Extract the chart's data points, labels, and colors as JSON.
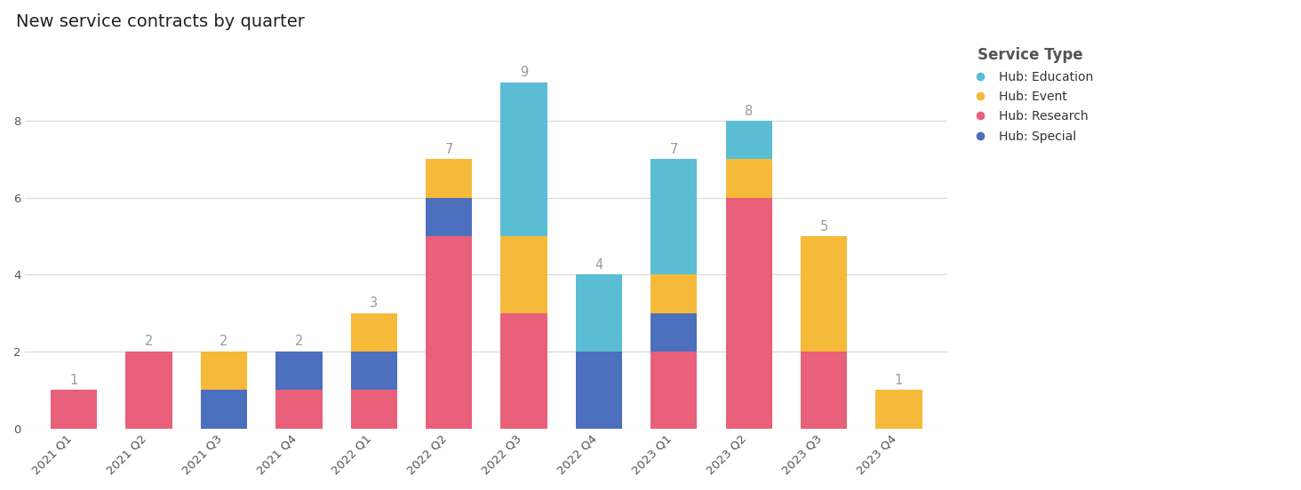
{
  "title": "New service contracts by quarter",
  "quarters": [
    "2021 Q1",
    "2021 Q2",
    "2021 Q3",
    "2021 Q4",
    "2022 Q1",
    "2022 Q2",
    "2022 Q3",
    "2022 Q4",
    "2023 Q1",
    "2023 Q2",
    "2023 Q3",
    "2023 Q4"
  ],
  "series": {
    "Hub: Research": [
      1,
      2,
      0,
      1,
      1,
      5,
      3,
      0,
      2,
      6,
      2,
      0
    ],
    "Hub: Special": [
      0,
      0,
      1,
      1,
      1,
      1,
      0,
      2,
      1,
      0,
      0,
      0
    ],
    "Hub: Event": [
      0,
      0,
      1,
      0,
      1,
      1,
      2,
      0,
      1,
      1,
      3,
      1
    ],
    "Hub: Education": [
      0,
      0,
      0,
      0,
      0,
      0,
      4,
      2,
      3,
      1,
      0,
      0
    ]
  },
  "totals": [
    1,
    2,
    2,
    2,
    3,
    7,
    9,
    4,
    7,
    8,
    5,
    1
  ],
  "colors": {
    "Hub: Research": "#e8607a",
    "Hub: Special": "#4c6fbe",
    "Hub: Event": "#f5ba3a",
    "Hub: Education": "#5bbdd4"
  },
  "legend_title": "Service Type",
  "legend_order": [
    "Hub: Education",
    "Hub: Event",
    "Hub: Research",
    "Hub: Special"
  ],
  "stack_order": [
    "Hub: Research",
    "Hub: Special",
    "Hub: Event",
    "Hub: Education"
  ],
  "ylim": [
    0,
    10
  ],
  "yticks": [
    0,
    2,
    4,
    6,
    8
  ],
  "background_color": "#ffffff",
  "grid_color": "#d8d8d8",
  "title_fontsize": 14,
  "tick_fontsize": 9.5,
  "total_label_color": "#999999",
  "total_label_fontsize": 10.5,
  "bar_width": 0.62
}
